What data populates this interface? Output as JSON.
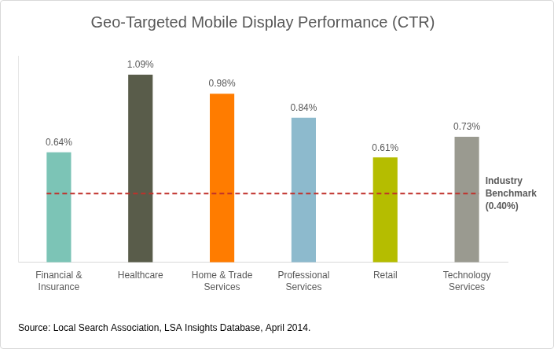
{
  "chart_data": {
    "type": "bar",
    "title": "Geo-Targeted Mobile Display Performance (CTR)",
    "categories": [
      [
        "Financial &",
        "Insurance"
      ],
      "Healthcare",
      [
        "Home & Trade",
        "Services"
      ],
      [
        "Professional",
        "Services"
      ],
      "Retail",
      [
        "Technology",
        "Services"
      ]
    ],
    "values": [
      0.64,
      1.09,
      0.98,
      0.84,
      0.61,
      0.73
    ],
    "value_labels": [
      "0.64%",
      "1.09%",
      "0.98%",
      "0.84%",
      "0.61%",
      "0.73%"
    ],
    "colors": [
      "#7cc4b6",
      "#595c4a",
      "#ff7c00",
      "#8dbacd",
      "#b5bd00",
      "#9a9a90"
    ],
    "ylim": [
      0,
      1.2
    ],
    "grid": false,
    "data_labels": true,
    "tick_labels": "x",
    "benchmark": {
      "label": [
        "Industry",
        "Benchmark",
        "(0.40%)"
      ],
      "value": 0.4,
      "color": "#c0302b",
      "line_style": "dashed"
    },
    "source": "Source: Local Search Association, LSA Insights Database, April 2014."
  }
}
